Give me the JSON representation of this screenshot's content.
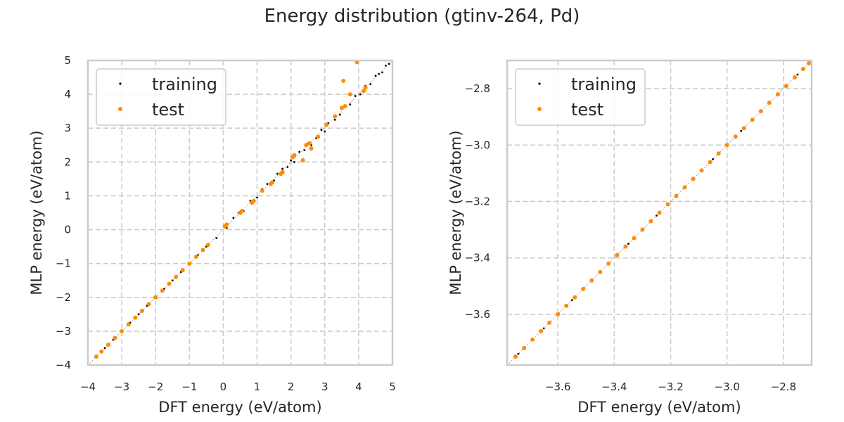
{
  "figure": {
    "title": "Energy distribution (gtinv-264, Pd)"
  },
  "chart_data": [
    {
      "type": "scatter",
      "title": "",
      "xlabel": "DFT energy (eV/atom)",
      "ylabel": "MLP energy (eV/atom)",
      "xlim": [
        -4,
        5
      ],
      "ylim": [
        -4,
        5
      ],
      "xticks": [
        -4,
        -3,
        -2,
        -1,
        0,
        1,
        2,
        3,
        4,
        5
      ],
      "yticks": [
        -4,
        -3,
        -2,
        -1,
        0,
        1,
        2,
        3,
        4,
        5
      ],
      "xtick_labels": [
        "−4",
        "−3",
        "−2",
        "−1",
        "0",
        "1",
        "2",
        "3",
        "4",
        "5"
      ],
      "ytick_labels": [
        "−4",
        "−3",
        "−2",
        "−1",
        "0",
        "1",
        "2",
        "3",
        "4",
        "5"
      ],
      "grid": true,
      "legend": "upper-left",
      "series": [
        {
          "name": "training",
          "color": "#000000",
          "points": [
            [
              -3.75,
              -3.75
            ],
            [
              -3.5,
              -3.5
            ],
            [
              -3.25,
              -3.25
            ],
            [
              -3.0,
              -3.0
            ],
            [
              -2.75,
              -2.75
            ],
            [
              -2.5,
              -2.5
            ],
            [
              -2.25,
              -2.25
            ],
            [
              -2.0,
              -2.0
            ],
            [
              -1.75,
              -1.75
            ],
            [
              -1.5,
              -1.5
            ],
            [
              -1.25,
              -1.25
            ],
            [
              -1.0,
              -1.0
            ],
            [
              -0.75,
              -0.75
            ],
            [
              -0.5,
              -0.5
            ],
            [
              -0.2,
              -0.25
            ],
            [
              0.1,
              0.05
            ],
            [
              0.3,
              0.35
            ],
            [
              0.45,
              0.5
            ],
            [
              0.6,
              0.55
            ],
            [
              0.8,
              0.85
            ],
            [
              1.0,
              0.95
            ],
            [
              1.15,
              1.2
            ],
            [
              1.3,
              1.35
            ],
            [
              1.5,
              1.45
            ],
            [
              1.6,
              1.65
            ],
            [
              1.75,
              1.8
            ],
            [
              1.9,
              1.85
            ],
            [
              2.0,
              2.05
            ],
            [
              2.1,
              2.0
            ],
            [
              2.25,
              2.3
            ],
            [
              2.4,
              2.35
            ],
            [
              2.5,
              2.55
            ],
            [
              2.6,
              2.5
            ],
            [
              2.75,
              2.7
            ],
            [
              2.9,
              2.95
            ],
            [
              3.0,
              2.9
            ],
            [
              3.1,
              3.15
            ],
            [
              3.3,
              3.25
            ],
            [
              3.45,
              3.4
            ],
            [
              3.6,
              3.65
            ],
            [
              3.75,
              3.7
            ],
            [
              3.9,
              3.95
            ],
            [
              4.05,
              4.0
            ],
            [
              4.2,
              4.25
            ],
            [
              4.35,
              4.3
            ],
            [
              4.5,
              4.55
            ],
            [
              4.6,
              4.6
            ],
            [
              4.7,
              4.65
            ],
            [
              4.8,
              4.85
            ],
            [
              4.9,
              4.9
            ]
          ]
        },
        {
          "name": "test",
          "color": "#ff8c00",
          "points": [
            [
              -3.75,
              -3.75
            ],
            [
              -3.6,
              -3.6
            ],
            [
              -3.4,
              -3.4
            ],
            [
              -3.2,
              -3.2
            ],
            [
              -3.0,
              -3.0
            ],
            [
              -2.8,
              -2.8
            ],
            [
              -2.6,
              -2.6
            ],
            [
              -2.4,
              -2.4
            ],
            [
              -2.2,
              -2.2
            ],
            [
              -2.0,
              -2.0
            ],
            [
              -1.8,
              -1.8
            ],
            [
              -1.6,
              -1.6
            ],
            [
              -1.4,
              -1.4
            ],
            [
              -1.2,
              -1.2
            ],
            [
              -1.0,
              -1.0
            ],
            [
              -0.8,
              -0.8
            ],
            [
              -0.6,
              -0.6
            ],
            [
              -0.45,
              -0.45
            ],
            [
              0.05,
              0.1
            ],
            [
              0.1,
              0.15
            ],
            [
              0.5,
              0.5
            ],
            [
              0.55,
              0.55
            ],
            [
              0.85,
              0.8
            ],
            [
              0.9,
              0.85
            ],
            [
              1.15,
              1.15
            ],
            [
              1.4,
              1.35
            ],
            [
              1.45,
              1.4
            ],
            [
              1.7,
              1.65
            ],
            [
              1.75,
              1.7
            ],
            [
              2.05,
              2.15
            ],
            [
              2.1,
              2.2
            ],
            [
              2.35,
              2.05
            ],
            [
              2.45,
              2.5
            ],
            [
              2.55,
              2.55
            ],
            [
              2.6,
              2.4
            ],
            [
              2.8,
              2.75
            ],
            [
              3.05,
              3.1
            ],
            [
              3.3,
              3.35
            ],
            [
              3.5,
              3.6
            ],
            [
              3.6,
              3.65
            ],
            [
              3.55,
              4.4
            ],
            [
              3.75,
              4.0
            ],
            [
              3.95,
              4.95
            ],
            [
              4.15,
              4.1
            ],
            [
              4.2,
              4.2
            ]
          ]
        }
      ]
    },
    {
      "type": "scatter",
      "title": "",
      "xlabel": "DFT energy (eV/atom)",
      "ylabel": "MLP energy (eV/atom)",
      "xlim": [
        -3.78,
        -2.7
      ],
      "ylim": [
        -3.78,
        -2.7
      ],
      "xticks": [
        -3.6,
        -3.4,
        -3.2,
        -3.0,
        -2.8
      ],
      "yticks": [
        -3.6,
        -3.4,
        -3.2,
        -3.0,
        -2.8
      ],
      "xtick_labels": [
        "−3.6",
        "−3.4",
        "−3.2",
        "−3.0",
        "−2.8"
      ],
      "ytick_labels": [
        "−3.6",
        "−3.4",
        "−3.2",
        "−3.0",
        "−2.8"
      ],
      "grid": true,
      "legend": "upper-left",
      "series": [
        {
          "name": "training",
          "color": "#000000",
          "points": [
            [
              -3.74,
              -3.74
            ],
            [
              -3.65,
              -3.65
            ],
            [
              -3.55,
              -3.55
            ],
            [
              -3.45,
              -3.45
            ],
            [
              -3.35,
              -3.35
            ],
            [
              -3.25,
              -3.25
            ],
            [
              -3.15,
              -3.15
            ],
            [
              -3.05,
              -3.05
            ],
            [
              -2.95,
              -2.95
            ],
            [
              -2.88,
              -2.88
            ],
            [
              -2.82,
              -2.82
            ],
            [
              -2.75,
              -2.75
            ],
            [
              -2.71,
              -2.71
            ]
          ]
        },
        {
          "name": "test",
          "color": "#ff8c00",
          "points": [
            [
              -3.75,
              -3.75
            ],
            [
              -3.72,
              -3.72
            ],
            [
              -3.69,
              -3.69
            ],
            [
              -3.66,
              -3.66
            ],
            [
              -3.63,
              -3.63
            ],
            [
              -3.6,
              -3.6
            ],
            [
              -3.57,
              -3.57
            ],
            [
              -3.54,
              -3.54
            ],
            [
              -3.51,
              -3.51
            ],
            [
              -3.48,
              -3.48
            ],
            [
              -3.45,
              -3.45
            ],
            [
              -3.42,
              -3.42
            ],
            [
              -3.39,
              -3.39
            ],
            [
              -3.36,
              -3.36
            ],
            [
              -3.33,
              -3.33
            ],
            [
              -3.3,
              -3.3
            ],
            [
              -3.27,
              -3.27
            ],
            [
              -3.24,
              -3.24
            ],
            [
              -3.21,
              -3.21
            ],
            [
              -3.18,
              -3.18
            ],
            [
              -3.15,
              -3.15
            ],
            [
              -3.12,
              -3.12
            ],
            [
              -3.09,
              -3.09
            ],
            [
              -3.06,
              -3.06
            ],
            [
              -3.03,
              -3.03
            ],
            [
              -3.0,
              -3.0
            ],
            [
              -2.97,
              -2.97
            ],
            [
              -2.94,
              -2.94
            ],
            [
              -2.91,
              -2.91
            ],
            [
              -2.88,
              -2.88
            ],
            [
              -2.85,
              -2.85
            ],
            [
              -2.82,
              -2.82
            ],
            [
              -2.79,
              -2.79
            ],
            [
              -2.76,
              -2.76
            ],
            [
              -2.73,
              -2.73
            ],
            [
              -2.71,
              -2.71
            ]
          ]
        }
      ]
    }
  ]
}
